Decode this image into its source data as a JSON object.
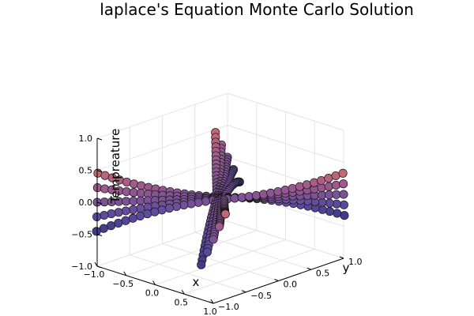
{
  "chart_data": {
    "type": "scatter3d",
    "title": "laplace's Equation Monte Carlo Solution",
    "xlabel": "x",
    "ylabel": "y",
    "zlabel": "Tempreature",
    "xlim": [
      -1.0,
      1.0
    ],
    "ylim": [
      -1.0,
      1.0
    ],
    "zlim": [
      -1.0,
      1.0
    ],
    "x_ticks": [
      "−1.0",
      "−0.5",
      "0.0",
      "0.5",
      "1.0"
    ],
    "y_ticks": [
      "−1.0",
      "−0.5",
      "0.0",
      "0.5",
      "1.0"
    ],
    "z_ticks": [
      "−1.0",
      "−0.5",
      "0.0",
      "0.5",
      "1.0"
    ],
    "grid": true,
    "legend": "none",
    "colormap": "thermal",
    "colors": {
      "low": "#1b2a5c",
      "mid": "#9a5a9a",
      "high": "#f5e85a"
    },
    "surface": "T = x^2 - y^2 (saddle), sampled over a narrow band near the diagonals",
    "marker": "circle"
  }
}
